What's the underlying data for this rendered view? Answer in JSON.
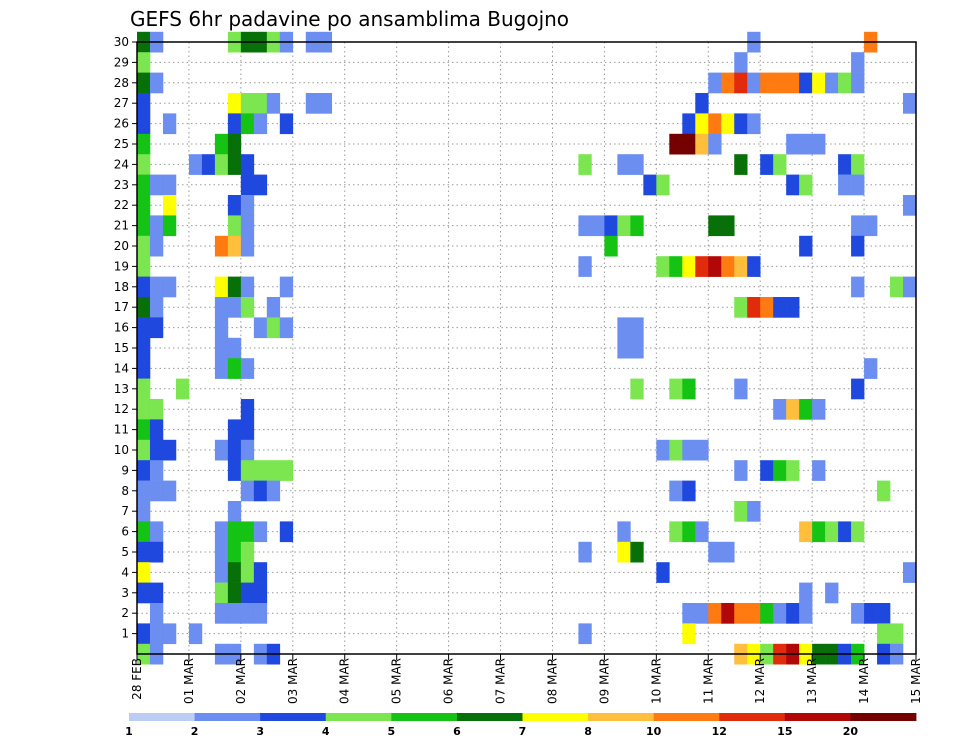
{
  "chart_data": {
    "type": "heatmap",
    "title": "GEFS 6hr padavine po ansamblima Bugojno",
    "xlabel": "",
    "ylabel": "",
    "x_tick_labels": [
      "28 FEB",
      "01 MAR",
      "02 MAR",
      "03 MAR",
      "04 MAR",
      "05 MAR",
      "06 MAR",
      "07 MAR",
      "08 MAR",
      "09 MAR",
      "10 MAR",
      "11 MAR",
      "12 MAR",
      "13 MAR",
      "14 MAR",
      "15 MAR"
    ],
    "x_range_days": [
      0,
      15
    ],
    "y_tick_labels": [
      "1",
      "2",
      "3",
      "4",
      "5",
      "6",
      "7",
      "8",
      "9",
      "10",
      "11",
      "12",
      "13",
      "14",
      "15",
      "16",
      "17",
      "18",
      "19",
      "20",
      "21",
      "22",
      "23",
      "24",
      "25",
      "26",
      "27",
      "28",
      "29",
      "30"
    ],
    "y_range": [
      0,
      30
    ],
    "grid": true,
    "colorbar": {
      "labels": [
        "1",
        "2",
        "3",
        "4",
        "5",
        "6",
        "7",
        "8",
        "10",
        "12",
        "15",
        "20"
      ],
      "colors": [
        "#bdccf5",
        "#6b8ef0",
        "#1f48de",
        "#7be64f",
        "#15c315",
        "#087008",
        "#ffff00",
        "#ffbe3c",
        "#ff7a10",
        "#e02b0d",
        "#b00808",
        "#740000"
      ]
    },
    "cells": [
      [
        0.0,
        30,
        5
      ],
      [
        0.25,
        30,
        1
      ],
      [
        1.75,
        30,
        3
      ],
      [
        2.0,
        30,
        5
      ],
      [
        2.25,
        30,
        5
      ],
      [
        2.5,
        30,
        3
      ],
      [
        2.75,
        30,
        1
      ],
      [
        3.25,
        30,
        1
      ],
      [
        3.5,
        30,
        1
      ],
      [
        11.75,
        30,
        1
      ],
      [
        14.0,
        30,
        8
      ],
      [
        0.0,
        29,
        3
      ],
      [
        11.5,
        29,
        1
      ],
      [
        13.75,
        29,
        1
      ],
      [
        0.0,
        28,
        5
      ],
      [
        0.25,
        28,
        1
      ],
      [
        11.0,
        28,
        1
      ],
      [
        11.25,
        28,
        8
      ],
      [
        11.5,
        28,
        9
      ],
      [
        11.75,
        28,
        1
      ],
      [
        12.0,
        28,
        8
      ],
      [
        12.25,
        28,
        8
      ],
      [
        12.5,
        28,
        8
      ],
      [
        12.75,
        28,
        2
      ],
      [
        13.0,
        28,
        6
      ],
      [
        13.25,
        28,
        1
      ],
      [
        13.5,
        28,
        3
      ],
      [
        13.75,
        28,
        1
      ],
      [
        0.0,
        27,
        2
      ],
      [
        1.75,
        27,
        6
      ],
      [
        2.0,
        27,
        3
      ],
      [
        2.25,
        27,
        3
      ],
      [
        2.5,
        27,
        1
      ],
      [
        3.25,
        27,
        1
      ],
      [
        3.5,
        27,
        1
      ],
      [
        10.75,
        27,
        2
      ],
      [
        14.75,
        27,
        1
      ],
      [
        0.0,
        26,
        2
      ],
      [
        0.5,
        26,
        1
      ],
      [
        1.75,
        26,
        2
      ],
      [
        2.0,
        26,
        4
      ],
      [
        2.25,
        26,
        1
      ],
      [
        2.75,
        26,
        2
      ],
      [
        10.5,
        26,
        2
      ],
      [
        10.75,
        26,
        6
      ],
      [
        11.0,
        26,
        8
      ],
      [
        11.25,
        26,
        6
      ],
      [
        11.5,
        26,
        2
      ],
      [
        11.75,
        26,
        1
      ],
      [
        0.0,
        25,
        4
      ],
      [
        1.5,
        25,
        4
      ],
      [
        1.75,
        25,
        5
      ],
      [
        10.25,
        25,
        11
      ],
      [
        10.5,
        25,
        11
      ],
      [
        10.75,
        25,
        7
      ],
      [
        11.0,
        25,
        1
      ],
      [
        12.5,
        25,
        1
      ],
      [
        12.75,
        25,
        1
      ],
      [
        13.0,
        25,
        1
      ],
      [
        0.0,
        24,
        3
      ],
      [
        1.0,
        24,
        1
      ],
      [
        1.25,
        24,
        2
      ],
      [
        1.5,
        24,
        3
      ],
      [
        1.75,
        24,
        5
      ],
      [
        2.0,
        24,
        2
      ],
      [
        8.5,
        24,
        3
      ],
      [
        9.25,
        24,
        1
      ],
      [
        9.5,
        24,
        1
      ],
      [
        11.5,
        24,
        5
      ],
      [
        12.0,
        24,
        2
      ],
      [
        12.25,
        24,
        3
      ],
      [
        13.5,
        24,
        2
      ],
      [
        13.75,
        24,
        3
      ],
      [
        0.0,
        23,
        4
      ],
      [
        0.25,
        23,
        1
      ],
      [
        0.5,
        23,
        1
      ],
      [
        2.0,
        23,
        2
      ],
      [
        2.25,
        23,
        2
      ],
      [
        9.75,
        23,
        2
      ],
      [
        10.0,
        23,
        3
      ],
      [
        12.5,
        23,
        2
      ],
      [
        12.75,
        23,
        3
      ],
      [
        13.5,
        23,
        1
      ],
      [
        13.75,
        23,
        1
      ],
      [
        0.0,
        22,
        4
      ],
      [
        0.5,
        22,
        6
      ],
      [
        1.75,
        22,
        2
      ],
      [
        2.0,
        22,
        1
      ],
      [
        14.75,
        22,
        1
      ],
      [
        0.0,
        21,
        4
      ],
      [
        0.25,
        21,
        1
      ],
      [
        0.5,
        21,
        4
      ],
      [
        1.75,
        21,
        3
      ],
      [
        2.0,
        21,
        1
      ],
      [
        8.5,
        21,
        1
      ],
      [
        8.75,
        21,
        1
      ],
      [
        9.0,
        21,
        2
      ],
      [
        9.25,
        21,
        3
      ],
      [
        9.5,
        21,
        4
      ],
      [
        11.0,
        21,
        5
      ],
      [
        11.25,
        21,
        5
      ],
      [
        13.75,
        21,
        1
      ],
      [
        14.0,
        21,
        1
      ],
      [
        0.0,
        20,
        3
      ],
      [
        0.25,
        20,
        1
      ],
      [
        1.5,
        20,
        8
      ],
      [
        1.75,
        20,
        7
      ],
      [
        2.0,
        20,
        1
      ],
      [
        9.0,
        20,
        4
      ],
      [
        12.75,
        20,
        2
      ],
      [
        13.75,
        20,
        2
      ],
      [
        0.0,
        19,
        3
      ],
      [
        8.5,
        19,
        1
      ],
      [
        10.0,
        19,
        3
      ],
      [
        10.25,
        19,
        4
      ],
      [
        10.5,
        19,
        6
      ],
      [
        10.75,
        19,
        9
      ],
      [
        11.0,
        19,
        10
      ],
      [
        11.25,
        19,
        8
      ],
      [
        11.5,
        19,
        7
      ],
      [
        11.75,
        19,
        2
      ],
      [
        0.0,
        18,
        2
      ],
      [
        0.25,
        18,
        1
      ],
      [
        0.5,
        18,
        1
      ],
      [
        1.5,
        18,
        6
      ],
      [
        1.75,
        18,
        5
      ],
      [
        2.0,
        18,
        1
      ],
      [
        2.75,
        18,
        1
      ],
      [
        13.75,
        18,
        1
      ],
      [
        14.5,
        18,
        3
      ],
      [
        14.75,
        18,
        1
      ],
      [
        0.0,
        17,
        5
      ],
      [
        0.25,
        17,
        1
      ],
      [
        1.5,
        17,
        1
      ],
      [
        1.75,
        17,
        1
      ],
      [
        2.0,
        17,
        3
      ],
      [
        2.5,
        17,
        1
      ],
      [
        11.5,
        17,
        3
      ],
      [
        11.75,
        17,
        9
      ],
      [
        12.0,
        17,
        8
      ],
      [
        12.25,
        17,
        2
      ],
      [
        12.5,
        17,
        2
      ],
      [
        0.0,
        16,
        2
      ],
      [
        0.25,
        16,
        2
      ],
      [
        1.5,
        16,
        1
      ],
      [
        2.25,
        16,
        1
      ],
      [
        2.5,
        16,
        3
      ],
      [
        2.75,
        16,
        1
      ],
      [
        9.25,
        16,
        1
      ],
      [
        9.5,
        16,
        1
      ],
      [
        0.0,
        15,
        2
      ],
      [
        1.5,
        15,
        1
      ],
      [
        1.75,
        15,
        1
      ],
      [
        9.25,
        15,
        1
      ],
      [
        9.5,
        15,
        1
      ],
      [
        0.0,
        14,
        2
      ],
      [
        1.5,
        14,
        1
      ],
      [
        1.75,
        14,
        4
      ],
      [
        2.0,
        14,
        1
      ],
      [
        14.0,
        14,
        1
      ],
      [
        0.0,
        13,
        3
      ],
      [
        0.75,
        13,
        3
      ],
      [
        9.5,
        13,
        3
      ],
      [
        10.25,
        13,
        3
      ],
      [
        10.5,
        13,
        4
      ],
      [
        11.5,
        13,
        1
      ],
      [
        13.75,
        13,
        2
      ],
      [
        0.0,
        12,
        3
      ],
      [
        0.25,
        12,
        3
      ],
      [
        2.0,
        12,
        2
      ],
      [
        12.25,
        12,
        1
      ],
      [
        12.5,
        12,
        7
      ],
      [
        12.75,
        12,
        4
      ],
      [
        13.0,
        12,
        1
      ],
      [
        0.0,
        11,
        4
      ],
      [
        0.25,
        11,
        2
      ],
      [
        1.75,
        11,
        2
      ],
      [
        2.0,
        11,
        2
      ],
      [
        0.0,
        10,
        3
      ],
      [
        0.25,
        10,
        2
      ],
      [
        0.5,
        10,
        2
      ],
      [
        1.5,
        10,
        1
      ],
      [
        1.75,
        10,
        2
      ],
      [
        2.0,
        10,
        1
      ],
      [
        10.0,
        10,
        1
      ],
      [
        10.25,
        10,
        3
      ],
      [
        10.5,
        10,
        1
      ],
      [
        10.75,
        10,
        1
      ],
      [
        0.0,
        9,
        2
      ],
      [
        0.25,
        9,
        1
      ],
      [
        1.75,
        9,
        2
      ],
      [
        2.0,
        9,
        3
      ],
      [
        2.25,
        9,
        3
      ],
      [
        2.5,
        9,
        3
      ],
      [
        2.75,
        9,
        3
      ],
      [
        11.5,
        9,
        1
      ],
      [
        12.0,
        9,
        2
      ],
      [
        12.25,
        9,
        4
      ],
      [
        12.5,
        9,
        3
      ],
      [
        13.0,
        9,
        1
      ],
      [
        0.0,
        8,
        1
      ],
      [
        0.25,
        8,
        1
      ],
      [
        0.5,
        8,
        1
      ],
      [
        2.0,
        8,
        1
      ],
      [
        2.25,
        8,
        2
      ],
      [
        2.5,
        8,
        1
      ],
      [
        10.25,
        8,
        1
      ],
      [
        10.5,
        8,
        2
      ],
      [
        14.25,
        8,
        3
      ],
      [
        0.0,
        7,
        1
      ],
      [
        1.75,
        7,
        1
      ],
      [
        11.5,
        7,
        3
      ],
      [
        11.75,
        7,
        1
      ],
      [
        0.0,
        6,
        4
      ],
      [
        0.25,
        6,
        1
      ],
      [
        1.5,
        6,
        1
      ],
      [
        1.75,
        6,
        4
      ],
      [
        2.0,
        6,
        4
      ],
      [
        2.25,
        6,
        1
      ],
      [
        2.75,
        6,
        2
      ],
      [
        9.25,
        6,
        1
      ],
      [
        10.25,
        6,
        3
      ],
      [
        10.5,
        6,
        4
      ],
      [
        10.75,
        6,
        1
      ],
      [
        12.75,
        6,
        7
      ],
      [
        13.0,
        6,
        4
      ],
      [
        13.25,
        6,
        3
      ],
      [
        13.5,
        6,
        2
      ],
      [
        13.75,
        6,
        3
      ],
      [
        0.0,
        5,
        2
      ],
      [
        0.25,
        5,
        2
      ],
      [
        1.5,
        5,
        1
      ],
      [
        1.75,
        5,
        4
      ],
      [
        2.0,
        5,
        3
      ],
      [
        8.5,
        5,
        1
      ],
      [
        9.25,
        5,
        6
      ],
      [
        9.5,
        5,
        5
      ],
      [
        11.0,
        5,
        1
      ],
      [
        11.25,
        5,
        1
      ],
      [
        0.0,
        4,
        6
      ],
      [
        1.5,
        4,
        1
      ],
      [
        1.75,
        4,
        5
      ],
      [
        2.0,
        4,
        3
      ],
      [
        2.25,
        4,
        2
      ],
      [
        10.0,
        4,
        2
      ],
      [
        14.75,
        4,
        1
      ],
      [
        15.0,
        4,
        2
      ],
      [
        0.0,
        3,
        2
      ],
      [
        0.25,
        3,
        2
      ],
      [
        1.5,
        3,
        3
      ],
      [
        1.75,
        3,
        5
      ],
      [
        2.0,
        3,
        2
      ],
      [
        2.25,
        3,
        2
      ],
      [
        12.75,
        3,
        1
      ],
      [
        13.25,
        3,
        1
      ],
      [
        0.25,
        2,
        1
      ],
      [
        1.5,
        2,
        1
      ],
      [
        1.75,
        2,
        1
      ],
      [
        2.0,
        2,
        1
      ],
      [
        2.25,
        2,
        1
      ],
      [
        10.5,
        2,
        1
      ],
      [
        10.75,
        2,
        1
      ],
      [
        11.0,
        2,
        8
      ],
      [
        11.25,
        2,
        10
      ],
      [
        11.5,
        2,
        8
      ],
      [
        11.75,
        2,
        8
      ],
      [
        12.0,
        2,
        4
      ],
      [
        12.25,
        2,
        1
      ],
      [
        12.5,
        2,
        2
      ],
      [
        12.75,
        2,
        1
      ],
      [
        13.75,
        2,
        1
      ],
      [
        14.0,
        2,
        2
      ],
      [
        14.25,
        2,
        2
      ],
      [
        0.0,
        1,
        2
      ],
      [
        0.25,
        1,
        1
      ],
      [
        0.5,
        1,
        1
      ],
      [
        1.0,
        1,
        1
      ],
      [
        8.5,
        1,
        1
      ],
      [
        10.5,
        1,
        6
      ],
      [
        14.25,
        1,
        3
      ],
      [
        14.5,
        1,
        3
      ],
      [
        0.0,
        0,
        3
      ],
      [
        0.25,
        0,
        1
      ],
      [
        1.5,
        0,
        1
      ],
      [
        1.75,
        0,
        1
      ],
      [
        2.25,
        0,
        1
      ],
      [
        2.5,
        0,
        2
      ],
      [
        11.5,
        0,
        7
      ],
      [
        11.75,
        0,
        6
      ],
      [
        12.0,
        0,
        3
      ],
      [
        12.25,
        0,
        9
      ],
      [
        12.5,
        0,
        10
      ],
      [
        12.75,
        0,
        6
      ],
      [
        13.0,
        0,
        5
      ],
      [
        13.25,
        0,
        5
      ],
      [
        13.5,
        0,
        2
      ],
      [
        13.75,
        0,
        4
      ],
      [
        14.25,
        0,
        2
      ],
      [
        14.5,
        0,
        1
      ]
    ]
  }
}
